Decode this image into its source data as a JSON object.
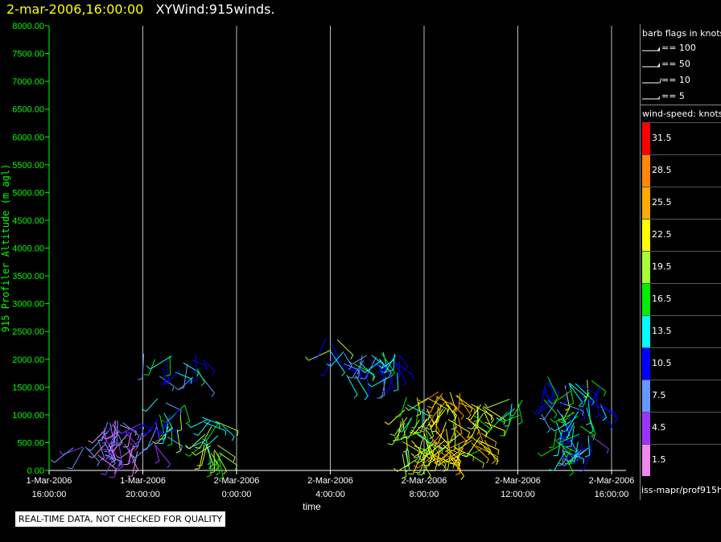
{
  "header": {
    "timestamp": "2-mar-2006,16:00:00",
    "product": "XYWind:915winds."
  },
  "notice": "REAL-TIME DATA, NOT CHECKED FOR QUALITY",
  "source_label": "iss-mapr/prof915h",
  "barb_legend": {
    "title": "barb flags in knots",
    "items": [
      "== 100",
      "== 50",
      "== 10",
      "== 5"
    ]
  },
  "speed_legend": {
    "title": "wind-speed: knots",
    "items": [
      {
        "label": "31.5",
        "color": "#ff0000"
      },
      {
        "label": "28.5",
        "color": "#ff8800"
      },
      {
        "label": "25.5",
        "color": "#ffaa00"
      },
      {
        "label": "22.5",
        "color": "#ffff00"
      },
      {
        "label": "19.5",
        "color": "#aaff33"
      },
      {
        "label": "16.5",
        "color": "#00ee00"
      },
      {
        "label": "13.5",
        "color": "#00ffff"
      },
      {
        "label": "10.5",
        "color": "#0000ff"
      },
      {
        "label": "7.5",
        "color": "#6699ff"
      },
      {
        "label": "4.5",
        "color": "#9933ff"
      },
      {
        "label": "1.5",
        "color": "#ee88ee"
      }
    ]
  },
  "chart_data": {
    "type": "scatter",
    "title": "XYWind:915winds.",
    "xlabel": "time",
    "ylabel": "915 Profiler Altitude (m agl)",
    "ylim": [
      0,
      8000
    ],
    "xlim": [
      0,
      24
    ],
    "yticks": [
      "0.00",
      "500.00",
      "1000.00",
      "1500.00",
      "2000.00",
      "2500.00",
      "3000.00",
      "3500.00",
      "4000.00",
      "4500.00",
      "5000.00",
      "5500.00",
      "6000.00",
      "6500.00",
      "7000.00",
      "7500.00",
      "8000.00"
    ],
    "xticks": [
      {
        "line1": "1-Mar-2006",
        "line2": "16:00:00"
      },
      {
        "line1": "1-Mar-2006",
        "line2": "20:00:00"
      },
      {
        "line1": "2-Mar-2006",
        "line2": "0:00:00"
      },
      {
        "line1": "2-Mar-2006",
        "line2": "4:00:00"
      },
      {
        "line1": "2-Mar-2006",
        "line2": "8:00:00"
      },
      {
        "line1": "2-Mar-2006",
        "line2": "12:00:00"
      },
      {
        "line1": "2-Mar-2006",
        "line2": "16:00:00"
      }
    ],
    "grid": "vertical",
    "clusters": [
      {
        "t0": 0.8,
        "t1": 1.8,
        "h0": 380,
        "h1": 520,
        "speed": 4.5,
        "n": 4
      },
      {
        "t0": 1.9,
        "t1": 3.8,
        "h0": 180,
        "h1": 920,
        "speed": 4.5,
        "n": 38
      },
      {
        "t0": 3.8,
        "t1": 4.6,
        "h0": 350,
        "h1": 900,
        "speed": 8,
        "n": 10
      },
      {
        "t0": 4.6,
        "t1": 5.2,
        "h0": 400,
        "h1": 1300,
        "speed": 11,
        "n": 10
      },
      {
        "t0": 5.2,
        "t1": 5.8,
        "h0": 700,
        "h1": 1300,
        "speed": 14,
        "n": 8
      },
      {
        "t0": 3.9,
        "t1": 7.0,
        "h0": 1650,
        "h1": 2150,
        "speed": 12,
        "n": 18
      },
      {
        "t0": 6.5,
        "t1": 7.4,
        "h0": 200,
        "h1": 1000,
        "speed": 17,
        "n": 26
      },
      {
        "t0": 11.8,
        "t1": 12.3,
        "h0": 1950,
        "h1": 2400,
        "speed": 15,
        "n": 6
      },
      {
        "t0": 12.5,
        "t1": 15.0,
        "h0": 1650,
        "h1": 2150,
        "speed": 11,
        "n": 36
      },
      {
        "t0": 15.0,
        "t1": 16.2,
        "h0": 200,
        "h1": 1350,
        "speed": 19,
        "n": 40
      },
      {
        "t0": 16.2,
        "t1": 17.6,
        "h0": 250,
        "h1": 1450,
        "speed": 23,
        "n": 60
      },
      {
        "t0": 17.6,
        "t1": 18.6,
        "h0": 300,
        "h1": 1300,
        "speed": 21,
        "n": 30
      },
      {
        "t0": 19.3,
        "t1": 20.3,
        "h0": 950,
        "h1": 1350,
        "speed": 15,
        "n": 8
      },
      {
        "t0": 21.0,
        "t1": 21.9,
        "h0": 1000,
        "h1": 1700,
        "speed": 12,
        "n": 14
      },
      {
        "t0": 22.0,
        "t1": 23.6,
        "h0": 950,
        "h1": 1650,
        "speed": 14,
        "n": 28
      },
      {
        "t0": 21.6,
        "t1": 22.7,
        "h0": 300,
        "h1": 900,
        "speed": 13,
        "n": 24
      },
      {
        "t0": 22.5,
        "t1": 23.3,
        "h0": 300,
        "h1": 700,
        "speed": 9,
        "n": 10
      }
    ]
  }
}
